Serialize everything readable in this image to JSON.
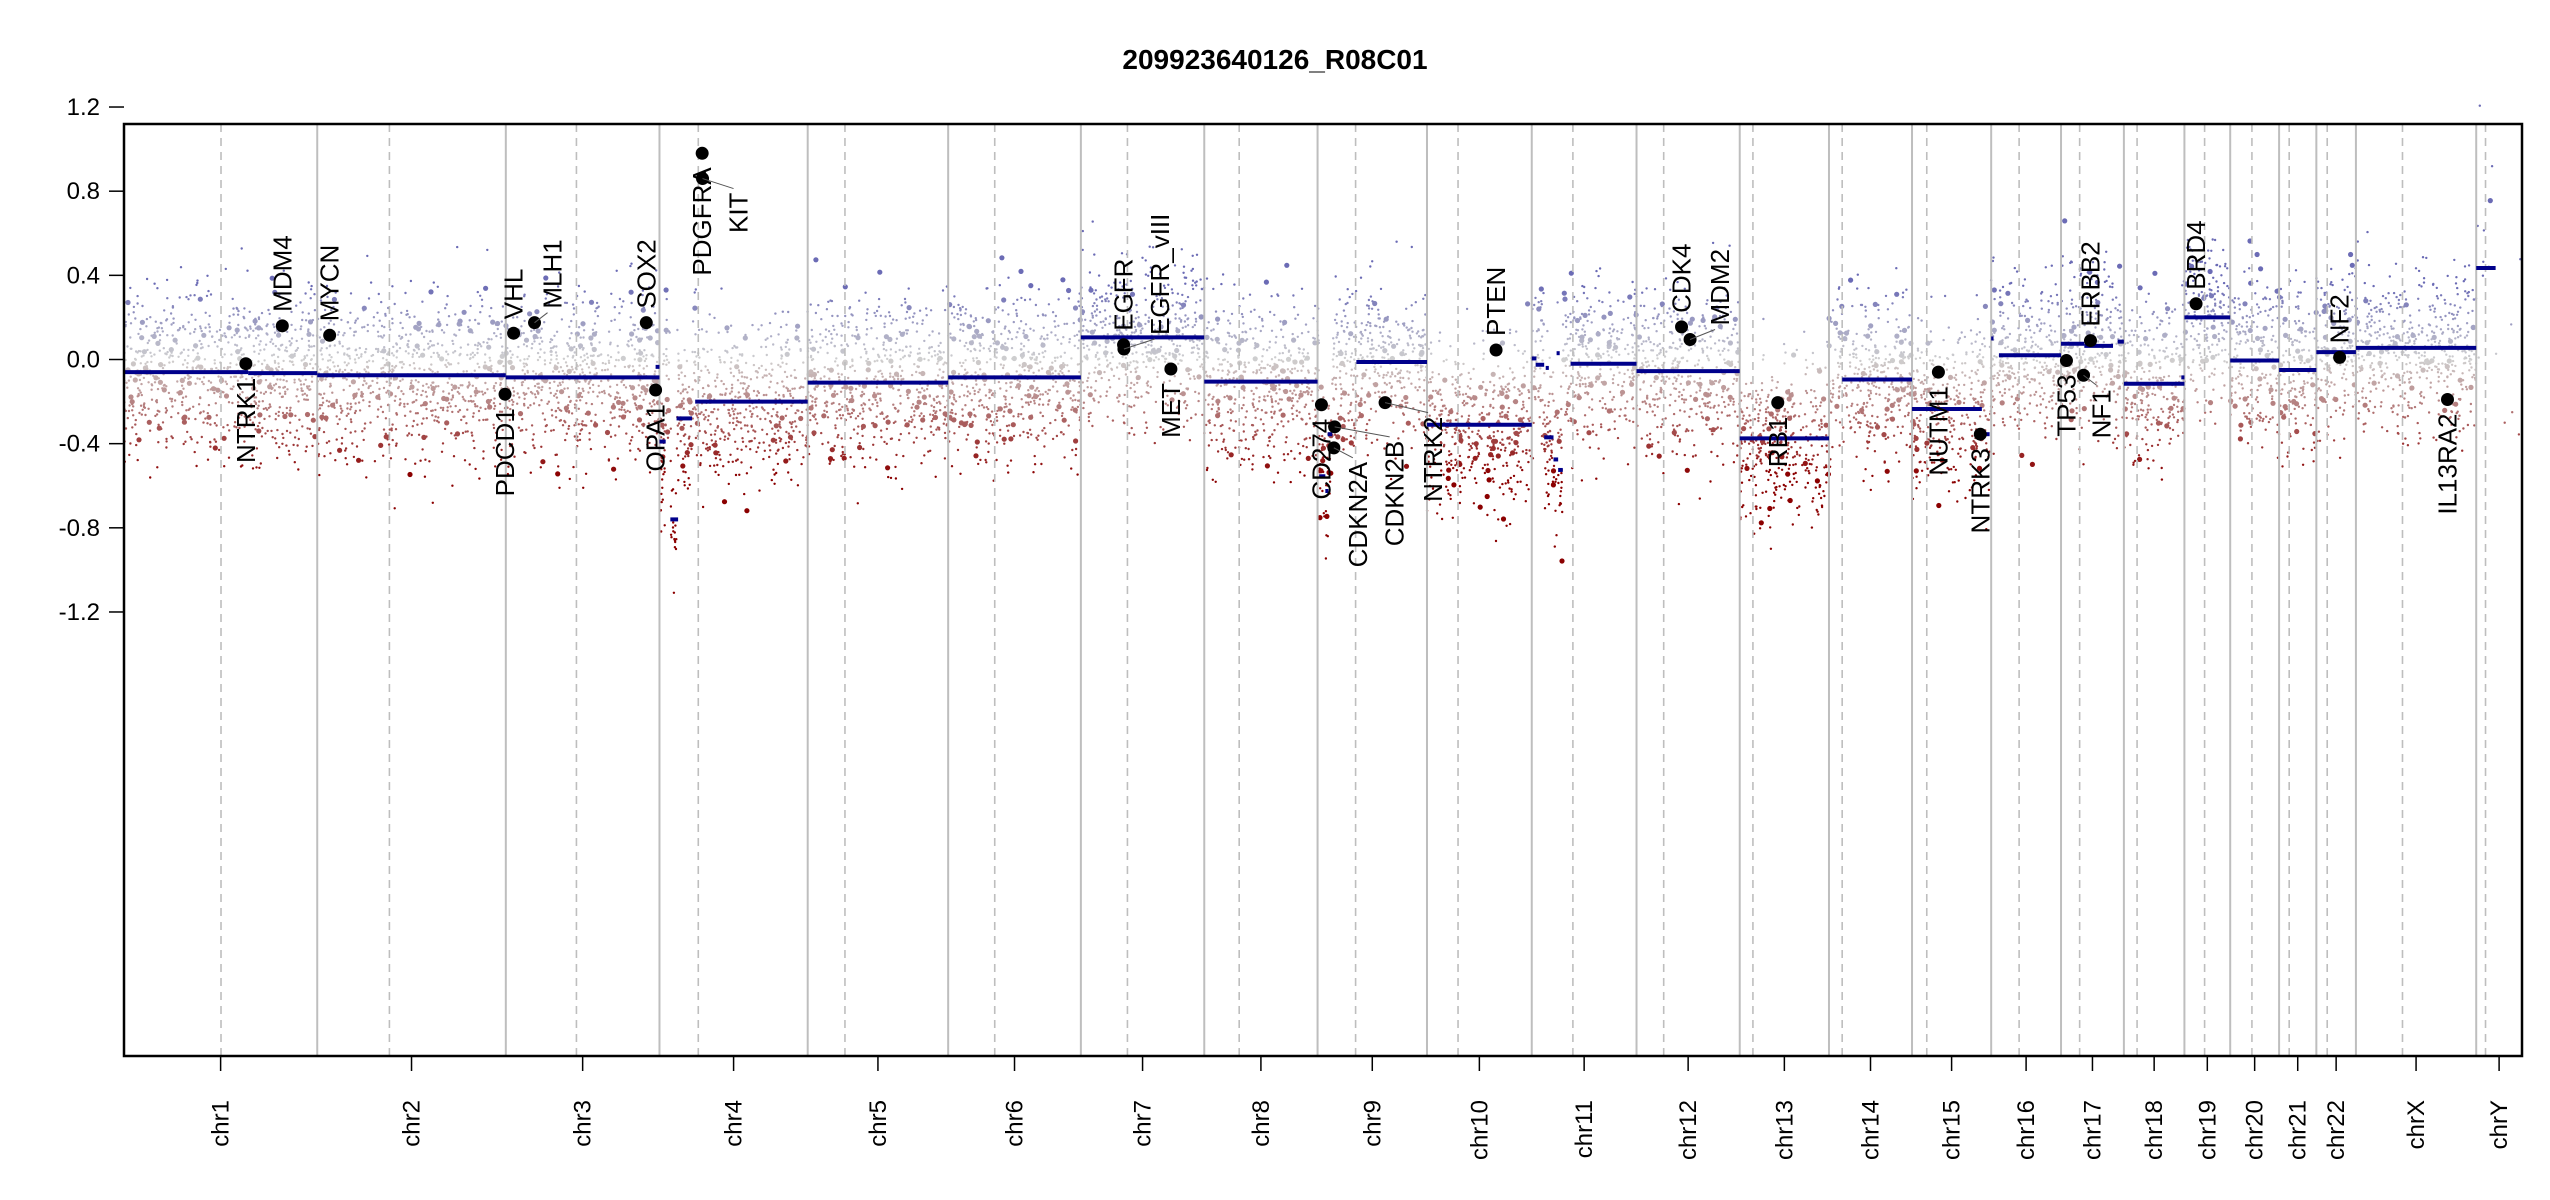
{
  "chart_data": {
    "type": "scatter",
    "title": "209923640126_R08C01",
    "xlabel": "",
    "ylabel": "",
    "ylim": [
      -1.35,
      1.35
    ],
    "y_ticks": [
      "1.2",
      "0.8",
      "0.4",
      "0.0",
      "-0.4",
      "-0.8",
      "-1.2"
    ],
    "y_tick_values": [
      1.2,
      0.8,
      0.4,
      0.0,
      -0.4,
      -0.8,
      -1.2
    ],
    "grid": false,
    "colors": {
      "segment": "#00008b",
      "gain": "#6b6bb5",
      "neutral": "#cfcfcf",
      "loss": "#8b0000",
      "gene_point": "#000000",
      "chrom_border": "#bebebe",
      "centromere": "#bebebe"
    },
    "chromosomes": [
      {
        "name": "chr1",
        "length": 249,
        "centromere": 125
      },
      {
        "name": "chr2",
        "length": 243,
        "centromere": 93
      },
      {
        "name": "chr3",
        "length": 198,
        "centromere": 91
      },
      {
        "name": "chr4",
        "length": 191,
        "centromere": 50
      },
      {
        "name": "chr5",
        "length": 181,
        "centromere": 48
      },
      {
        "name": "chr6",
        "length": 171,
        "centromere": 60
      },
      {
        "name": "chr7",
        "length": 159,
        "centromere": 60
      },
      {
        "name": "chr8",
        "length": 146,
        "centromere": 45
      },
      {
        "name": "chr9",
        "length": 141,
        "centromere": 49
      },
      {
        "name": "chr10",
        "length": 135,
        "centromere": 40
      },
      {
        "name": "chr11",
        "length": 135,
        "centromere": 53
      },
      {
        "name": "chr12",
        "length": 133,
        "centromere": 35
      },
      {
        "name": "chr13",
        "length": 115,
        "centromere": 17
      },
      {
        "name": "chr14",
        "length": 107,
        "centromere": 17
      },
      {
        "name": "chr15",
        "length": 102,
        "centromere": 19
      },
      {
        "name": "chr16",
        "length": 90,
        "centromere": 36
      },
      {
        "name": "chr17",
        "length": 81,
        "centromere": 24
      },
      {
        "name": "chr18",
        "length": 78,
        "centromere": 17
      },
      {
        "name": "chr19",
        "length": 59,
        "centromere": 26
      },
      {
        "name": "chr20",
        "length": 63,
        "centromere": 28
      },
      {
        "name": "chr21",
        "length": 48,
        "centromere": 13
      },
      {
        "name": "chr22",
        "length": 51,
        "centromere": 14
      },
      {
        "name": "chrX",
        "length": 155,
        "centromere": 60
      },
      {
        "name": "chrY",
        "length": 59,
        "centromere": 12
      }
    ],
    "segments": [
      {
        "chrom": "chr1",
        "start": 0,
        "end": 160,
        "value": -0.06
      },
      {
        "chrom": "chr1",
        "start": 160,
        "end": 249,
        "value": -0.065
      },
      {
        "chrom": "chr2",
        "start": 0,
        "end": 243,
        "value": -0.075
      },
      {
        "chrom": "chr3",
        "start": 0,
        "end": 198,
        "value": -0.085
      },
      {
        "chrom": "chr3",
        "start": 193,
        "end": 198,
        "value": -0.035
      },
      {
        "chrom": "chr4",
        "start": 0,
        "end": 8,
        "value": -0.39
      },
      {
        "chrom": "chr4",
        "start": 14,
        "end": 24,
        "value": -0.76
      },
      {
        "chrom": "chr4",
        "start": 22,
        "end": 42,
        "value": -0.28
      },
      {
        "chrom": "chr4",
        "start": 46,
        "end": 191,
        "value": -0.2
      },
      {
        "chrom": "chr5",
        "start": 0,
        "end": 181,
        "value": -0.11
      },
      {
        "chrom": "chr6",
        "start": 0,
        "end": 171,
        "value": -0.085
      },
      {
        "chrom": "chr7",
        "start": 0,
        "end": 159,
        "value": 0.105
      },
      {
        "chrom": "chr8",
        "start": 0,
        "end": 146,
        "value": -0.105
      },
      {
        "chrom": "chr9",
        "start": 2,
        "end": 10,
        "value": -0.555
      },
      {
        "chrom": "chr9",
        "start": 10,
        "end": 14,
        "value": -0.625
      },
      {
        "chrom": "chr9",
        "start": 13,
        "end": 19,
        "value": -0.355
      },
      {
        "chrom": "chr9",
        "start": 50,
        "end": 141,
        "value": -0.012
      },
      {
        "chrom": "chr10",
        "start": 0,
        "end": 135,
        "value": -0.31
      },
      {
        "chrom": "chr11",
        "start": 0,
        "end": 6,
        "value": 0.005
      },
      {
        "chrom": "chr11",
        "start": 5,
        "end": 16,
        "value": -0.025
      },
      {
        "chrom": "chr11",
        "start": 18,
        "end": 22,
        "value": -0.04
      },
      {
        "chrom": "chr11",
        "start": 16,
        "end": 28,
        "value": -0.37
      },
      {
        "chrom": "chr11",
        "start": 28,
        "end": 34,
        "value": -0.475
      },
      {
        "chrom": "chr11",
        "start": 32,
        "end": 36,
        "value": 0.03
      },
      {
        "chrom": "chr11",
        "start": 34,
        "end": 40,
        "value": -0.525
      },
      {
        "chrom": "chr11",
        "start": 50,
        "end": 135,
        "value": -0.02
      },
      {
        "chrom": "chr12",
        "start": 0,
        "end": 133,
        "value": -0.055
      },
      {
        "chrom": "chr13",
        "start": 0,
        "end": 115,
        "value": -0.375
      },
      {
        "chrom": "chr14",
        "start": 17,
        "end": 107,
        "value": -0.095
      },
      {
        "chrom": "chr15",
        "start": 0,
        "end": 90,
        "value": -0.235
      },
      {
        "chrom": "chr15",
        "start": 95,
        "end": 100,
        "value": -0.355
      },
      {
        "chrom": "chr16",
        "start": 0,
        "end": 3,
        "value": 0.1
      },
      {
        "chrom": "chr16",
        "start": 10,
        "end": 90,
        "value": 0.02
      },
      {
        "chrom": "chr17",
        "start": 0,
        "end": 30,
        "value": 0.075
      },
      {
        "chrom": "chr17",
        "start": 30,
        "end": 67,
        "value": 0.065
      },
      {
        "chrom": "chr17",
        "start": 73,
        "end": 81,
        "value": 0.085
      },
      {
        "chrom": "chr18",
        "start": 0,
        "end": 78,
        "value": -0.115
      },
      {
        "chrom": "chr18",
        "start": 74,
        "end": 78,
        "value": -0.085
      },
      {
        "chrom": "chr19",
        "start": 0,
        "end": 59,
        "value": 0.2
      },
      {
        "chrom": "chr20",
        "start": 0,
        "end": 63,
        "value": -0.005
      },
      {
        "chrom": "chr21",
        "start": 0,
        "end": 48,
        "value": -0.05
      },
      {
        "chrom": "chr22",
        "start": 0,
        "end": 51,
        "value": 0.035
      },
      {
        "chrom": "chrX",
        "start": 0,
        "end": 155,
        "value": 0.055
      },
      {
        "chrom": "chrY",
        "start": 0,
        "end": 25,
        "value": 0.435
      }
    ],
    "genes": [
      {
        "name": "NTRK1",
        "chrom": "chr1",
        "pos": 157,
        "value": -0.02,
        "label_side": "below"
      },
      {
        "name": "MDM4",
        "chrom": "chr1",
        "pos": 204,
        "value": 0.16,
        "label_side": "above"
      },
      {
        "name": "MYCN",
        "chrom": "chr2",
        "pos": 16,
        "value": 0.115,
        "label_side": "above"
      },
      {
        "name": "PDCD1",
        "chrom": "chr2",
        "pos": 242,
        "value": -0.165,
        "label_side": "below"
      },
      {
        "name": "VHL",
        "chrom": "chr3",
        "pos": 10,
        "value": 0.125,
        "label_side": "above"
      },
      {
        "name": "MLH1",
        "chrom": "chr3",
        "pos": 37,
        "value": 0.175,
        "label_side": "above"
      },
      {
        "name": "SOX2",
        "chrom": "chr3",
        "pos": 181,
        "value": 0.175,
        "label_side": "above"
      },
      {
        "name": "OPA1",
        "chrom": "chr3",
        "pos": 193,
        "value": -0.145,
        "label_side": "below"
      },
      {
        "name": "PDGFRA",
        "chrom": "chr4",
        "pos": 55,
        "value": 0.98,
        "label_side": "below"
      },
      {
        "name": "KIT",
        "chrom": "chr4",
        "pos": 55.5,
        "value": 0.86,
        "label_side": "below"
      },
      {
        "name": "EGFR",
        "chrom": "chr7",
        "pos": 55,
        "value": 0.07,
        "label_side": "above"
      },
      {
        "name": "EGFR_vIII",
        "chrom": "chr7",
        "pos": 55.5,
        "value": 0.05,
        "label_side": "above"
      },
      {
        "name": "MET",
        "chrom": "chr7",
        "pos": 116,
        "value": -0.045,
        "label_side": "below"
      },
      {
        "name": "CD274",
        "chrom": "chr9",
        "pos": 5,
        "value": -0.215,
        "label_side": "below"
      },
      {
        "name": "CDKN2A",
        "chrom": "chr9",
        "pos": 21,
        "value": -0.42,
        "label_side": "below"
      },
      {
        "name": "CDKN2B",
        "chrom": "chr9",
        "pos": 22,
        "value": -0.32,
        "label_side": "below"
      },
      {
        "name": "NTRK2",
        "chrom": "chr9",
        "pos": 87,
        "value": -0.205,
        "label_side": "below"
      },
      {
        "name": "PTEN",
        "chrom": "chr10",
        "pos": 89,
        "value": 0.045,
        "label_side": "above"
      },
      {
        "name": "CDK4",
        "chrom": "chr12",
        "pos": 58,
        "value": 0.155,
        "label_side": "above"
      },
      {
        "name": "MDM2",
        "chrom": "chr12",
        "pos": 69,
        "value": 0.095,
        "label_side": "above"
      },
      {
        "name": "RB1",
        "chrom": "chr13",
        "pos": 49,
        "value": -0.205,
        "label_side": "below"
      },
      {
        "name": "NUTM1",
        "chrom": "chr15",
        "pos": 34,
        "value": -0.06,
        "label_side": "below"
      },
      {
        "name": "NTRK3",
        "chrom": "chr15",
        "pos": 88,
        "value": -0.355,
        "label_side": "below"
      },
      {
        "name": "TP53",
        "chrom": "chr17",
        "pos": 7,
        "value": -0.005,
        "label_side": "below"
      },
      {
        "name": "NF1",
        "chrom": "chr17",
        "pos": 29,
        "value": -0.075,
        "label_side": "below"
      },
      {
        "name": "ERBB2",
        "chrom": "chr17",
        "pos": 38,
        "value": 0.09,
        "label_side": "above"
      },
      {
        "name": "BRD4",
        "chrom": "chr19",
        "pos": 15,
        "value": 0.265,
        "label_side": "above"
      },
      {
        "name": "NF2",
        "chrom": "chr22",
        "pos": 30,
        "value": 0.01,
        "label_side": "above"
      },
      {
        "name": "IL13RA2",
        "chrom": "chrX",
        "pos": 118,
        "value": -0.19,
        "label_side": "below"
      }
    ],
    "gene_display_names": {
      "EGFR_vIII": "EGFR_vIII"
    }
  }
}
